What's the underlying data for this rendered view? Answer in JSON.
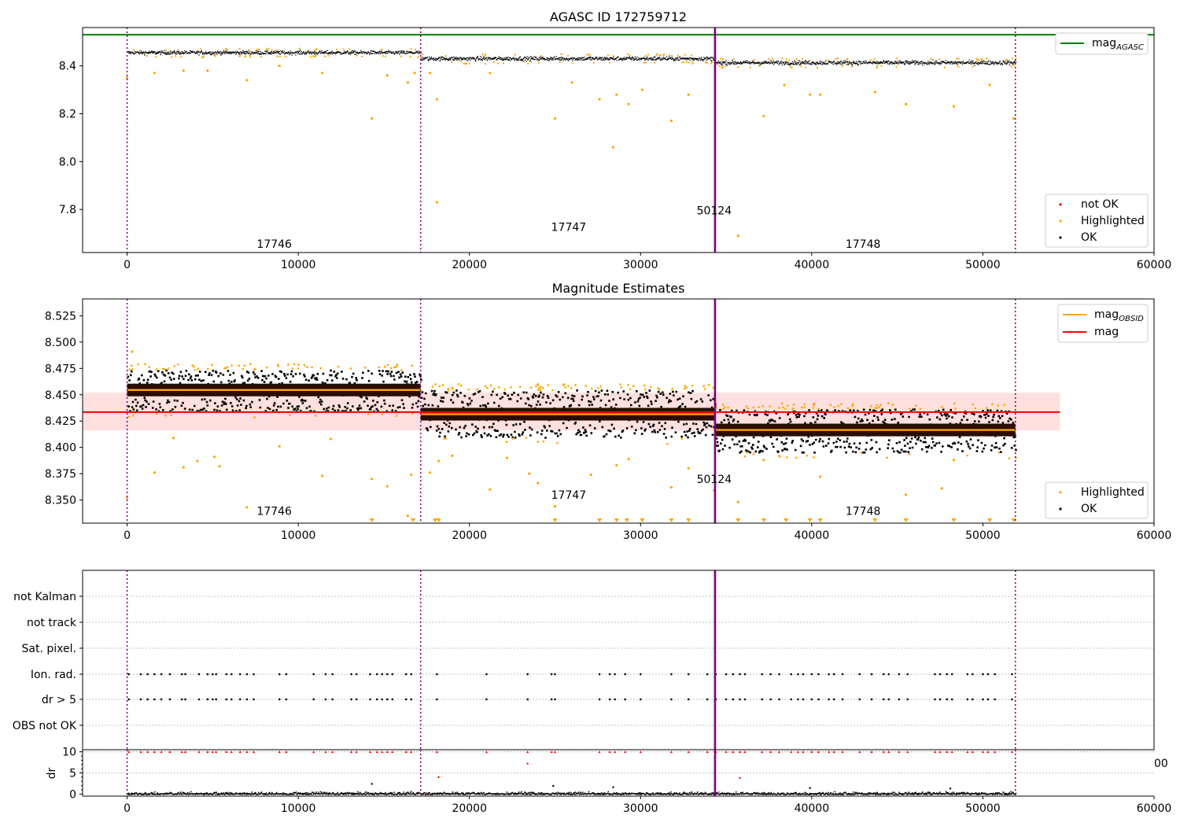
{
  "figure": {
    "panels": [
      {
        "id": "mag",
        "title": "AGASC ID 172759712",
        "legend_top": [
          {
            "label": "mag",
            "sub": "AGASC",
            "color": "#008000"
          }
        ],
        "legend_bottom": [
          {
            "label": "not OK",
            "color": "#ff0000"
          },
          {
            "label": "Highlighted",
            "color": "#ffa500"
          },
          {
            "label": "OK",
            "color": "#000000"
          }
        ]
      },
      {
        "id": "est",
        "title": "Magnitude Estimates",
        "legend_top": [
          {
            "label": "mag",
            "sub": "OBSID",
            "color": "#ffa500"
          },
          {
            "label": "mag",
            "sub": "",
            "color": "#ff0000"
          }
        ],
        "legend_bottom": [
          {
            "label": "Highlighted",
            "color": "#ffa500"
          },
          {
            "label": "OK",
            "color": "#000000"
          }
        ]
      },
      {
        "id": "flags",
        "title": "",
        "legend_top": [],
        "legend_bottom": []
      }
    ]
  },
  "chart_data": [
    {
      "type": "scatter",
      "title": "AGASC ID 172759712",
      "xlim": [
        -2600,
        60000
      ],
      "ylim": [
        7.62,
        8.56
      ],
      "xticks": [
        "0",
        "10000",
        "20000",
        "30000",
        "40000",
        "50000",
        "60000"
      ],
      "xtick_values": [
        0,
        10000,
        20000,
        30000,
        40000,
        50000,
        60000
      ],
      "yticks": [
        "7.8",
        "8.0",
        "8.2",
        "8.4"
      ],
      "ytick_values": [
        7.8,
        8.0,
        8.2,
        8.4
      ],
      "hlines": [
        {
          "name": "mag_AGASC",
          "y": 8.53,
          "color": "#008000"
        }
      ],
      "vlines": [
        0,
        17150,
        34350,
        51900
      ],
      "obsid_labels": [
        {
          "text": "17746",
          "x": 8600,
          "y": 7.64
        },
        {
          "text": "17747",
          "x": 25800,
          "y": 7.71
        },
        {
          "text": "50124",
          "x": 34300,
          "y": 7.78
        },
        {
          "text": "17748",
          "x": 43000,
          "y": 7.64
        }
      ],
      "segments": [
        {
          "x0": 0,
          "x1": 17150,
          "y": 8.457,
          "spread": 0.011
        },
        {
          "x0": 17150,
          "x1": 34350,
          "y": 8.432,
          "spread": 0.012
        },
        {
          "x0": 34350,
          "x1": 51900,
          "y": 8.415,
          "spread": 0.012
        }
      ],
      "highlighted_outliers": [
        [
          0,
          8.35
        ],
        [
          1600,
          8.37
        ],
        [
          3300,
          8.38
        ],
        [
          4700,
          8.38
        ],
        [
          7000,
          8.34
        ],
        [
          8900,
          8.4
        ],
        [
          11400,
          8.37
        ],
        [
          14300,
          8.18
        ],
        [
          15200,
          8.36
        ],
        [
          16400,
          8.33
        ],
        [
          16800,
          8.37
        ],
        [
          17700,
          8.37
        ],
        [
          18100,
          8.26
        ],
        [
          18100,
          7.83
        ],
        [
          21200,
          8.37
        ],
        [
          25000,
          8.18
        ],
        [
          26000,
          8.33
        ],
        [
          27600,
          8.26
        ],
        [
          28400,
          8.06
        ],
        [
          28600,
          8.28
        ],
        [
          29300,
          8.24
        ],
        [
          30100,
          8.3
        ],
        [
          31800,
          8.17
        ],
        [
          32800,
          8.28
        ],
        [
          35700,
          7.69
        ],
        [
          37200,
          8.19
        ],
        [
          38400,
          8.32
        ],
        [
          39900,
          8.28
        ],
        [
          40500,
          8.28
        ],
        [
          43700,
          8.29
        ],
        [
          45500,
          8.24
        ],
        [
          48300,
          8.23
        ],
        [
          50400,
          8.32
        ],
        [
          51800,
          8.18
        ]
      ]
    },
    {
      "type": "scatter",
      "title": "Magnitude Estimates",
      "xlim": [
        -2600,
        60000
      ],
      "ylim": [
        8.328,
        8.541
      ],
      "xticks": [
        "0",
        "10000",
        "20000",
        "30000",
        "40000",
        "50000",
        "60000"
      ],
      "xtick_values": [
        0,
        10000,
        20000,
        30000,
        40000,
        50000,
        60000
      ],
      "yticks": [
        "8.350",
        "8.375",
        "8.400",
        "8.425",
        "8.450",
        "8.475",
        "8.500",
        "8.525"
      ],
      "ytick_values": [
        8.35,
        8.375,
        8.4,
        8.425,
        8.45,
        8.475,
        8.5,
        8.525
      ],
      "mag_line": {
        "y": 8.4335,
        "x0": -2600,
        "x1": 54500,
        "band": [
          8.416,
          8.452
        ]
      },
      "vlines": [
        0,
        17150,
        34350,
        51900
      ],
      "obsid_labels": [
        {
          "text": "17746",
          "x": 8600,
          "y": 8.336
        },
        {
          "text": "17747",
          "x": 25800,
          "y": 8.351
        },
        {
          "text": "50124",
          "x": 34300,
          "y": 8.366
        },
        {
          "text": "17748",
          "x": 43000,
          "y": 8.336
        }
      ],
      "segments": [
        {
          "x0": 0,
          "x1": 17150,
          "mag_obsid": 8.4545,
          "low": 8.435,
          "high": 8.474
        },
        {
          "x0": 17150,
          "x1": 34350,
          "mag_obsid": 8.4315,
          "low": 8.41,
          "high": 8.455
        },
        {
          "x0": 34350,
          "x1": 51900,
          "mag_obsid": 8.4165,
          "low": 8.396,
          "high": 8.437
        }
      ],
      "clipped_marker_x": [
        14300,
        16700,
        18000,
        18200,
        25000,
        27600,
        28600,
        29200,
        30100,
        31800,
        32800,
        35700,
        37200,
        38500,
        39900,
        40500,
        43700,
        45500,
        48300,
        50400,
        51800
      ],
      "highlighted_outliers": [
        [
          0,
          8.352
        ],
        [
          300,
          8.491
        ],
        [
          1600,
          8.376
        ],
        [
          2700,
          8.409
        ],
        [
          3300,
          8.381
        ],
        [
          4100,
          8.387
        ],
        [
          5100,
          8.391
        ],
        [
          5400,
          8.382
        ],
        [
          7000,
          8.343
        ],
        [
          8900,
          8.401
        ],
        [
          11400,
          8.373
        ],
        [
          11900,
          8.408
        ],
        [
          14300,
          8.37
        ],
        [
          15200,
          8.363
        ],
        [
          16400,
          8.335
        ],
        [
          16600,
          8.374
        ],
        [
          17700,
          8.376
        ],
        [
          18200,
          8.387
        ],
        [
          19000,
          8.392
        ],
        [
          21200,
          8.36
        ],
        [
          22200,
          8.39
        ],
        [
          23500,
          8.375
        ],
        [
          24000,
          8.366
        ],
        [
          25000,
          8.344
        ],
        [
          27100,
          8.374
        ],
        [
          28600,
          8.383
        ],
        [
          29300,
          8.389
        ],
        [
          31800,
          8.362
        ],
        [
          32800,
          8.38
        ],
        [
          34300,
          8.359
        ],
        [
          35700,
          8.348
        ],
        [
          37200,
          8.388
        ],
        [
          40500,
          8.372
        ],
        [
          45500,
          8.355
        ],
        [
          47600,
          8.361
        ],
        [
          48300,
          8.388
        ]
      ]
    },
    {
      "type": "scatter",
      "title": "",
      "xlim": [
        -2600,
        60000
      ],
      "categories": [
        "not Kalman",
        "not track",
        "Sat. pixel.",
        "Ion. rad.",
        "dr > 5",
        "OBS not OK"
      ],
      "vlines": [
        0,
        17150,
        34350,
        51900
      ],
      "flag_x": [
        100,
        800,
        1200,
        1600,
        2000,
        2500,
        3200,
        3400,
        4200,
        4700,
        5000,
        5200,
        5800,
        6100,
        6600,
        7000,
        7400,
        8900,
        9300,
        10900,
        11600,
        12000,
        13100,
        13400,
        14200,
        14600,
        14900,
        15200,
        15500,
        16300,
        16600,
        18100,
        21000,
        23400,
        24800,
        25000,
        27600,
        28200,
        28500,
        29100,
        30000,
        31800,
        32800,
        33900,
        34400,
        35000,
        35400,
        35800,
        36100,
        37100,
        37600,
        38100,
        38800,
        39200,
        39500,
        40000,
        40400,
        41000,
        41300,
        41800,
        42800,
        43500,
        44200,
        44500,
        45100,
        45600,
        47200,
        47500,
        47900,
        48200,
        49100,
        49400,
        50000,
        50300,
        50700,
        51700
      ]
    },
    {
      "type": "scatter",
      "title": "",
      "xlim": [
        -2600,
        60000
      ],
      "ylim": [
        -0.5,
        10.5
      ],
      "ylabel": "dr",
      "xticks": [
        "0",
        "10000",
        "20000",
        "30000",
        "40000",
        "50000",
        "60000"
      ],
      "xtick_values": [
        0,
        10000,
        20000,
        30000,
        40000,
        50000,
        60000
      ],
      "yticks": [
        "0",
        "5",
        "10"
      ],
      "ytick_values": [
        0,
        5,
        10
      ],
      "offscreen_label": "00",
      "vlines": [
        0,
        17150,
        34350,
        51900
      ],
      "extra_points": [
        [
          23400,
          7.2
        ],
        [
          18200,
          4.0
        ],
        [
          35800,
          3.8
        ],
        [
          14300,
          2.4
        ],
        [
          24900,
          1.9
        ],
        [
          28400,
          1.6
        ],
        [
          39900,
          1.4
        ],
        [
          48100,
          1.3
        ]
      ]
    }
  ]
}
